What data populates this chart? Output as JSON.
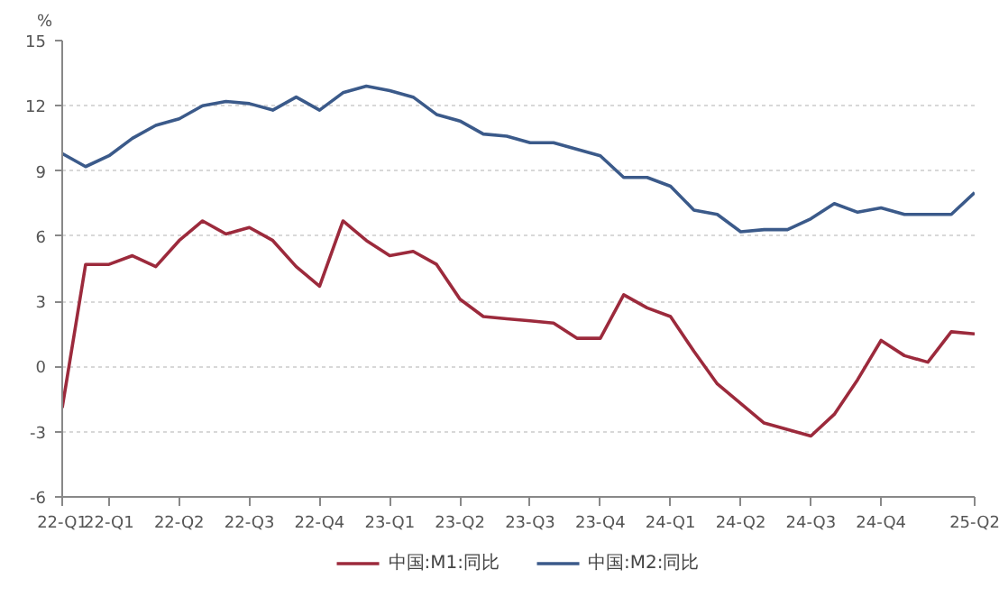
{
  "chart_data": {
    "type": "line",
    "ylabel": "%",
    "categories": [
      "22-Q1",
      null,
      "22-Q1",
      null,
      null,
      "22-Q2",
      null,
      null,
      "22-Q3",
      null,
      null,
      "22-Q4",
      null,
      null,
      "23-Q1",
      null,
      null,
      "23-Q2",
      null,
      null,
      "23-Q3",
      null,
      null,
      "23-Q4",
      null,
      null,
      "24-Q1",
      null,
      null,
      "24-Q2",
      null,
      null,
      "24-Q3",
      null,
      null,
      "24-Q4",
      null,
      null,
      null,
      "25-Q2"
    ],
    "series": [
      {
        "name": "中国:M1:同比",
        "color": "#9c2a3c",
        "values": [
          -1.9,
          4.7,
          4.7,
          5.1,
          4.6,
          5.8,
          6.7,
          6.1,
          6.4,
          5.8,
          4.6,
          3.7,
          6.7,
          5.8,
          5.1,
          5.3,
          4.7,
          3.1,
          2.3,
          2.2,
          2.1,
          2.0,
          1.3,
          1.3,
          3.3,
          2.7,
          2.3,
          0.7,
          -0.8,
          -1.7,
          -2.6,
          -2.9,
          -3.2,
          -2.2,
          -0.6,
          1.2,
          0.5,
          0.2,
          1.6,
          1.5
        ]
      },
      {
        "name": "中国:M2:同比",
        "color": "#3b5a8a",
        "values": [
          9.8,
          9.2,
          9.7,
          10.5,
          11.1,
          11.4,
          12.0,
          12.2,
          12.1,
          11.8,
          12.4,
          11.8,
          12.6,
          12.9,
          12.7,
          12.4,
          11.6,
          11.3,
          10.7,
          10.6,
          10.3,
          10.3,
          10.0,
          9.7,
          8.7,
          8.7,
          8.3,
          7.2,
          7.0,
          6.2,
          6.3,
          6.3,
          6.8,
          7.5,
          7.1,
          7.3,
          7.0,
          7.0,
          7.0,
          8.0
        ]
      }
    ],
    "ylim": [
      -6,
      15
    ],
    "yticks": [
      -6,
      -3,
      0,
      3,
      6,
      9,
      12,
      15
    ],
    "grid": "y",
    "legend": "bottom",
    "marker": "none",
    "line_style": "solid"
  }
}
